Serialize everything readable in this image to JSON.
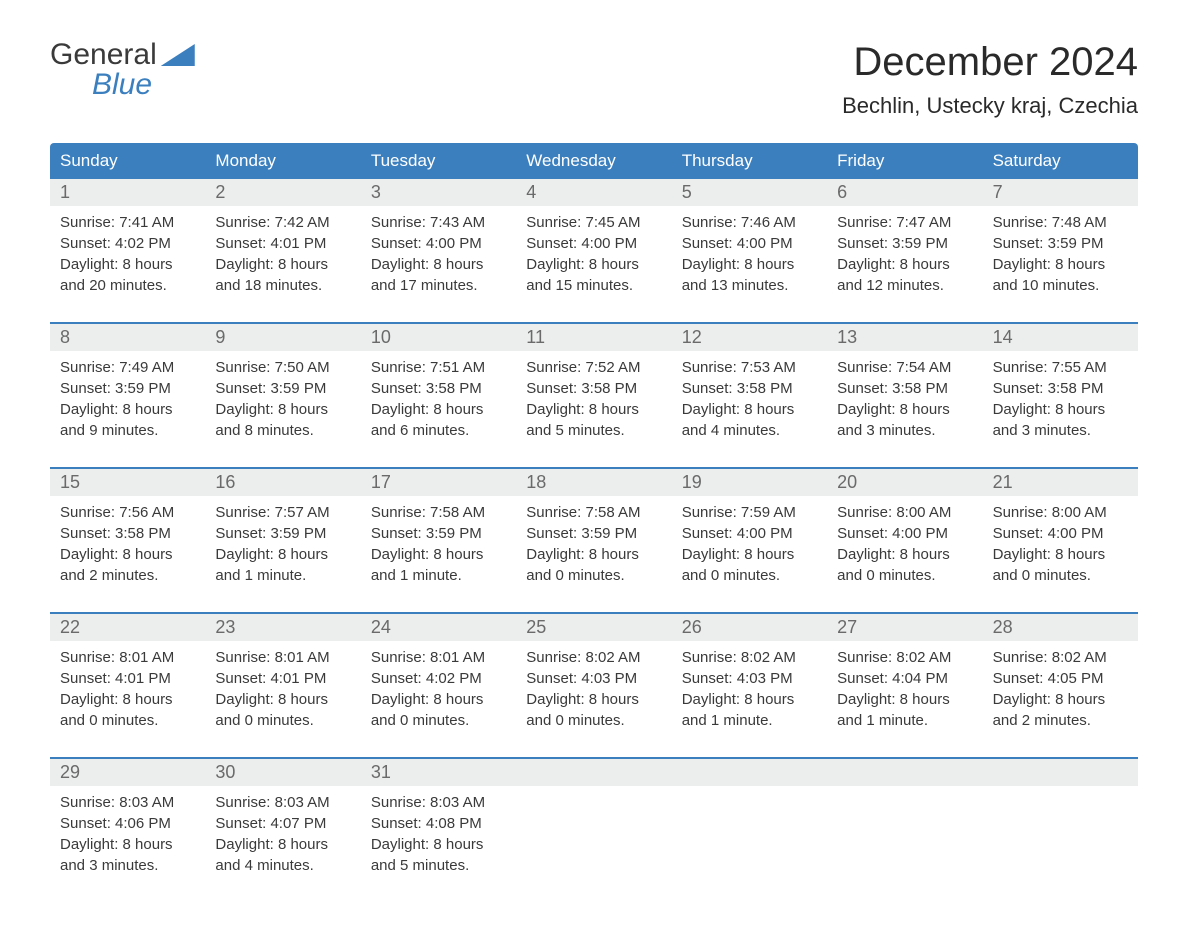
{
  "logo": {
    "word1": "General",
    "word2": "Blue"
  },
  "title": {
    "month": "December 2024",
    "location": "Bechlin, Ustecky kraj, Czechia"
  },
  "colors": {
    "accent": "#3b7fbf",
    "header_text": "#ffffff",
    "daynum_bg": "#eceded",
    "daynum_text": "#6a6a6a",
    "body_text": "#3a3a3a",
    "background": "#ffffff"
  },
  "day_headers": [
    "Sunday",
    "Monday",
    "Tuesday",
    "Wednesday",
    "Thursday",
    "Friday",
    "Saturday"
  ],
  "weeks": [
    [
      {
        "n": "1",
        "sr": "Sunrise: 7:41 AM",
        "ss": "Sunset: 4:02 PM",
        "d1": "Daylight: 8 hours",
        "d2": "and 20 minutes."
      },
      {
        "n": "2",
        "sr": "Sunrise: 7:42 AM",
        "ss": "Sunset: 4:01 PM",
        "d1": "Daylight: 8 hours",
        "d2": "and 18 minutes."
      },
      {
        "n": "3",
        "sr": "Sunrise: 7:43 AM",
        "ss": "Sunset: 4:00 PM",
        "d1": "Daylight: 8 hours",
        "d2": "and 17 minutes."
      },
      {
        "n": "4",
        "sr": "Sunrise: 7:45 AM",
        "ss": "Sunset: 4:00 PM",
        "d1": "Daylight: 8 hours",
        "d2": "and 15 minutes."
      },
      {
        "n": "5",
        "sr": "Sunrise: 7:46 AM",
        "ss": "Sunset: 4:00 PM",
        "d1": "Daylight: 8 hours",
        "d2": "and 13 minutes."
      },
      {
        "n": "6",
        "sr": "Sunrise: 7:47 AM",
        "ss": "Sunset: 3:59 PM",
        "d1": "Daylight: 8 hours",
        "d2": "and 12 minutes."
      },
      {
        "n": "7",
        "sr": "Sunrise: 7:48 AM",
        "ss": "Sunset: 3:59 PM",
        "d1": "Daylight: 8 hours",
        "d2": "and 10 minutes."
      }
    ],
    [
      {
        "n": "8",
        "sr": "Sunrise: 7:49 AM",
        "ss": "Sunset: 3:59 PM",
        "d1": "Daylight: 8 hours",
        "d2": "and 9 minutes."
      },
      {
        "n": "9",
        "sr": "Sunrise: 7:50 AM",
        "ss": "Sunset: 3:59 PM",
        "d1": "Daylight: 8 hours",
        "d2": "and 8 minutes."
      },
      {
        "n": "10",
        "sr": "Sunrise: 7:51 AM",
        "ss": "Sunset: 3:58 PM",
        "d1": "Daylight: 8 hours",
        "d2": "and 6 minutes."
      },
      {
        "n": "11",
        "sr": "Sunrise: 7:52 AM",
        "ss": "Sunset: 3:58 PM",
        "d1": "Daylight: 8 hours",
        "d2": "and 5 minutes."
      },
      {
        "n": "12",
        "sr": "Sunrise: 7:53 AM",
        "ss": "Sunset: 3:58 PM",
        "d1": "Daylight: 8 hours",
        "d2": "and 4 minutes."
      },
      {
        "n": "13",
        "sr": "Sunrise: 7:54 AM",
        "ss": "Sunset: 3:58 PM",
        "d1": "Daylight: 8 hours",
        "d2": "and 3 minutes."
      },
      {
        "n": "14",
        "sr": "Sunrise: 7:55 AM",
        "ss": "Sunset: 3:58 PM",
        "d1": "Daylight: 8 hours",
        "d2": "and 3 minutes."
      }
    ],
    [
      {
        "n": "15",
        "sr": "Sunrise: 7:56 AM",
        "ss": "Sunset: 3:58 PM",
        "d1": "Daylight: 8 hours",
        "d2": "and 2 minutes."
      },
      {
        "n": "16",
        "sr": "Sunrise: 7:57 AM",
        "ss": "Sunset: 3:59 PM",
        "d1": "Daylight: 8 hours",
        "d2": "and 1 minute."
      },
      {
        "n": "17",
        "sr": "Sunrise: 7:58 AM",
        "ss": "Sunset: 3:59 PM",
        "d1": "Daylight: 8 hours",
        "d2": "and 1 minute."
      },
      {
        "n": "18",
        "sr": "Sunrise: 7:58 AM",
        "ss": "Sunset: 3:59 PM",
        "d1": "Daylight: 8 hours",
        "d2": "and 0 minutes."
      },
      {
        "n": "19",
        "sr": "Sunrise: 7:59 AM",
        "ss": "Sunset: 4:00 PM",
        "d1": "Daylight: 8 hours",
        "d2": "and 0 minutes."
      },
      {
        "n": "20",
        "sr": "Sunrise: 8:00 AM",
        "ss": "Sunset: 4:00 PM",
        "d1": "Daylight: 8 hours",
        "d2": "and 0 minutes."
      },
      {
        "n": "21",
        "sr": "Sunrise: 8:00 AM",
        "ss": "Sunset: 4:00 PM",
        "d1": "Daylight: 8 hours",
        "d2": "and 0 minutes."
      }
    ],
    [
      {
        "n": "22",
        "sr": "Sunrise: 8:01 AM",
        "ss": "Sunset: 4:01 PM",
        "d1": "Daylight: 8 hours",
        "d2": "and 0 minutes."
      },
      {
        "n": "23",
        "sr": "Sunrise: 8:01 AM",
        "ss": "Sunset: 4:01 PM",
        "d1": "Daylight: 8 hours",
        "d2": "and 0 minutes."
      },
      {
        "n": "24",
        "sr": "Sunrise: 8:01 AM",
        "ss": "Sunset: 4:02 PM",
        "d1": "Daylight: 8 hours",
        "d2": "and 0 minutes."
      },
      {
        "n": "25",
        "sr": "Sunrise: 8:02 AM",
        "ss": "Sunset: 4:03 PM",
        "d1": "Daylight: 8 hours",
        "d2": "and 0 minutes."
      },
      {
        "n": "26",
        "sr": "Sunrise: 8:02 AM",
        "ss": "Sunset: 4:03 PM",
        "d1": "Daylight: 8 hours",
        "d2": "and 1 minute."
      },
      {
        "n": "27",
        "sr": "Sunrise: 8:02 AM",
        "ss": "Sunset: 4:04 PM",
        "d1": "Daylight: 8 hours",
        "d2": "and 1 minute."
      },
      {
        "n": "28",
        "sr": "Sunrise: 8:02 AM",
        "ss": "Sunset: 4:05 PM",
        "d1": "Daylight: 8 hours",
        "d2": "and 2 minutes."
      }
    ],
    [
      {
        "n": "29",
        "sr": "Sunrise: 8:03 AM",
        "ss": "Sunset: 4:06 PM",
        "d1": "Daylight: 8 hours",
        "d2": "and 3 minutes."
      },
      {
        "n": "30",
        "sr": "Sunrise: 8:03 AM",
        "ss": "Sunset: 4:07 PM",
        "d1": "Daylight: 8 hours",
        "d2": "and 4 minutes."
      },
      {
        "n": "31",
        "sr": "Sunrise: 8:03 AM",
        "ss": "Sunset: 4:08 PM",
        "d1": "Daylight: 8 hours",
        "d2": "and 5 minutes."
      },
      {
        "n": "",
        "sr": "",
        "ss": "",
        "d1": "",
        "d2": ""
      },
      {
        "n": "",
        "sr": "",
        "ss": "",
        "d1": "",
        "d2": ""
      },
      {
        "n": "",
        "sr": "",
        "ss": "",
        "d1": "",
        "d2": ""
      },
      {
        "n": "",
        "sr": "",
        "ss": "",
        "d1": "",
        "d2": ""
      }
    ]
  ]
}
